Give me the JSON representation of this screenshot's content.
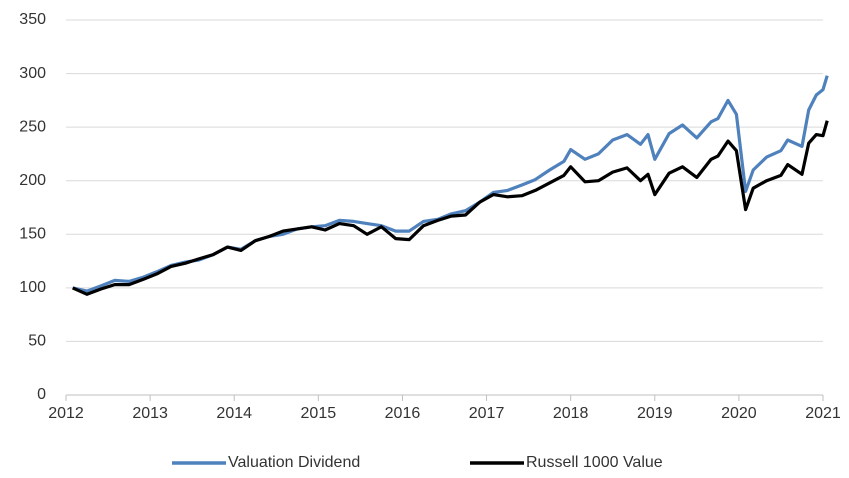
{
  "chart_data": {
    "type": "line",
    "x": [
      2012.08,
      2012.25,
      2012.42,
      2012.58,
      2012.75,
      2012.92,
      2013.08,
      2013.25,
      2013.42,
      2013.58,
      2013.75,
      2013.92,
      2014.08,
      2014.25,
      2014.42,
      2014.58,
      2014.75,
      2014.92,
      2015.08,
      2015.25,
      2015.42,
      2015.58,
      2015.75,
      2015.92,
      2016.08,
      2016.25,
      2016.42,
      2016.58,
      2016.75,
      2016.92,
      2017.08,
      2017.25,
      2017.42,
      2017.58,
      2017.75,
      2017.92,
      2018.0,
      2018.17,
      2018.33,
      2018.5,
      2018.67,
      2018.83,
      2018.92,
      2019.0,
      2019.17,
      2019.33,
      2019.5,
      2019.67,
      2019.75,
      2019.87,
      2019.97,
      2020.08,
      2020.17,
      2020.33,
      2020.5,
      2020.58,
      2020.75,
      2020.83,
      2020.92,
      2021.0,
      2021.05
    ],
    "series": [
      {
        "name": "Valuation Dividend",
        "color": "#4f81bd",
        "values": [
          100,
          97,
          102,
          107,
          106,
          110,
          115,
          121,
          124,
          126,
          131,
          138,
          136,
          144,
          148,
          150,
          155,
          157,
          158,
          163,
          162,
          160,
          158,
          153,
          153,
          162,
          164,
          169,
          172,
          180,
          189,
          191,
          196,
          201,
          210,
          218,
          229,
          220,
          225,
          238,
          243,
          234,
          243,
          220,
          244,
          252,
          240,
          255,
          258,
          275,
          262,
          190,
          210,
          222,
          228,
          238,
          232,
          266,
          280,
          285,
          298
        ]
      },
      {
        "name": "Russell 1000 Value",
        "color": "#000000",
        "values": [
          100,
          94,
          99,
          103,
          103,
          108,
          113,
          120,
          123,
          127,
          131,
          138,
          135,
          144,
          148,
          153,
          155,
          157,
          154,
          160,
          158,
          150,
          157,
          146,
          145,
          158,
          163,
          167,
          168,
          180,
          187,
          185,
          186,
          191,
          198,
          205,
          213,
          199,
          200,
          208,
          212,
          200,
          206,
          187,
          207,
          213,
          203,
          220,
          223,
          237,
          228,
          173,
          193,
          200,
          205,
          215,
          206,
          235,
          243,
          242,
          256
        ]
      }
    ],
    "xlim": [
      2012,
      2021
    ],
    "xticks": [
      2012,
      2013,
      2014,
      2015,
      2016,
      2017,
      2018,
      2019,
      2020,
      2021
    ],
    "ylim": [
      0,
      350
    ],
    "yticks": [
      0,
      50,
      100,
      150,
      200,
      250,
      300,
      350
    ],
    "grid": true,
    "legend": "bottom"
  }
}
